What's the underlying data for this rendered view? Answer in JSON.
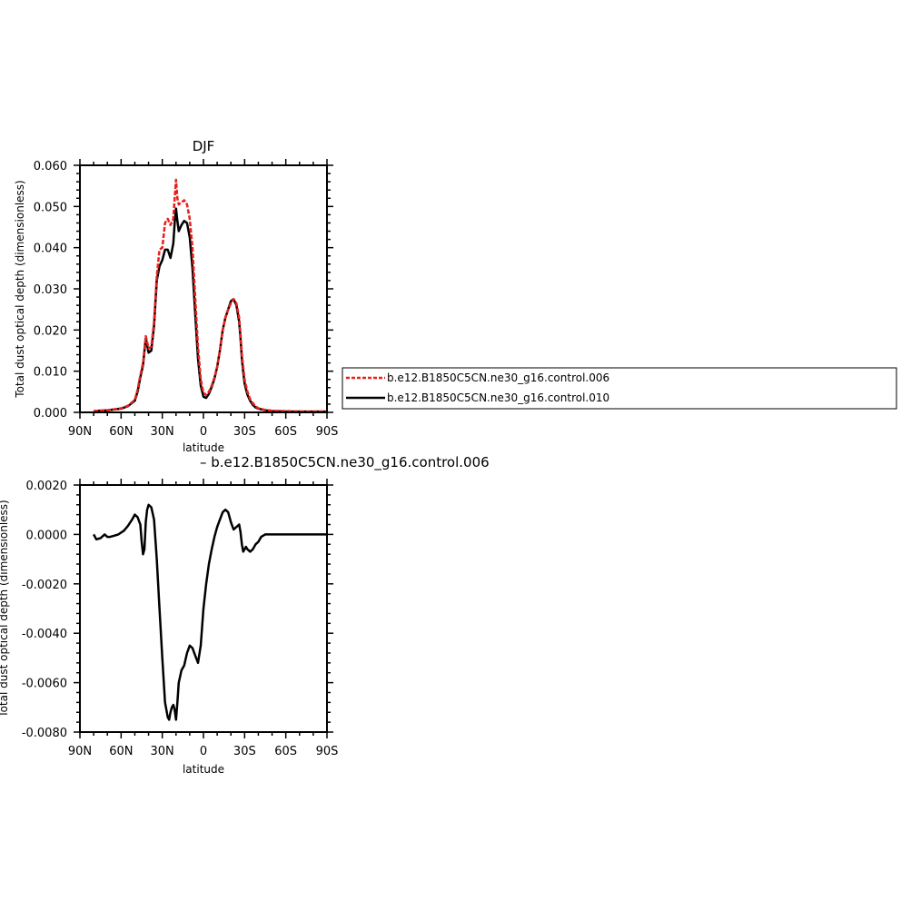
{
  "chart_data": [
    {
      "type": "line",
      "title": "DJF",
      "xlabel": "latitude",
      "ylabel": "Total dust optical depth (dimensionless)",
      "x_tick_values": [
        90,
        60,
        30,
        0,
        -30,
        -60,
        -90
      ],
      "x_tick_labels": [
        "90N",
        "60N",
        "30N",
        "0",
        "30S",
        "60S",
        "90S"
      ],
      "xlim": [
        90,
        -90
      ],
      "ylim": [
        0,
        0.06
      ],
      "y_tick_values": [
        0,
        0.01,
        0.02,
        0.03,
        0.04,
        0.05,
        0.06
      ],
      "y_tick_labels": [
        "0.000",
        "0.010",
        "0.020",
        "0.030",
        "0.040",
        "0.050",
        "0.060"
      ],
      "grid": false,
      "legend_position": "right",
      "series": [
        {
          "name": "b.e12.B1850C5CN.ne30_g16.control.006",
          "color": "#e8201c",
          "dash": true,
          "x": [
            80,
            70,
            60,
            55,
            50,
            48,
            46,
            44,
            42,
            40,
            38,
            36,
            34,
            32,
            30,
            28,
            26,
            24,
            22,
            21,
            20,
            19,
            18,
            16,
            14,
            12,
            10,
            8,
            6,
            4,
            2,
            0,
            -2,
            -4,
            -6,
            -8,
            -10,
            -12,
            -14,
            -16,
            -18,
            -20,
            -22,
            -24,
            -26,
            -27,
            -28,
            -29,
            -30,
            -32,
            -34,
            -36,
            -38,
            -40,
            -45,
            -50,
            -60,
            -70,
            -80,
            -90
          ],
          "y": [
            0.0003,
            0.0005,
            0.001,
            0.0016,
            0.003,
            0.0055,
            0.009,
            0.012,
            0.0185,
            0.0155,
            0.016,
            0.022,
            0.033,
            0.0395,
            0.04,
            0.046,
            0.047,
            0.0455,
            0.047,
            0.052,
            0.0565,
            0.052,
            0.0505,
            0.051,
            0.0515,
            0.0505,
            0.047,
            0.04,
            0.028,
            0.016,
            0.008,
            0.0048,
            0.0042,
            0.005,
            0.0065,
            0.0085,
            0.011,
            0.015,
            0.02,
            0.023,
            0.025,
            0.0265,
            0.0275,
            0.0265,
            0.023,
            0.019,
            0.014,
            0.011,
            0.008,
            0.005,
            0.0032,
            0.0022,
            0.0015,
            0.001,
            0.0006,
            0.0004,
            0.0003,
            0.0002,
            0.0002,
            0.0002
          ]
        },
        {
          "name": "b.e12.B1850C5CN.ne30_g16.control.010",
          "color": "#000000",
          "dash": false,
          "x": [
            80,
            70,
            60,
            55,
            50,
            48,
            46,
            44,
            42,
            40,
            38,
            36,
            34,
            32,
            30,
            28,
            26,
            24,
            22,
            21,
            20,
            19,
            18,
            16,
            14,
            12,
            10,
            8,
            6,
            4,
            2,
            0,
            -2,
            -4,
            -6,
            -8,
            -10,
            -12,
            -14,
            -16,
            -18,
            -20,
            -22,
            -24,
            -26,
            -27,
            -28,
            -29,
            -30,
            -32,
            -34,
            -36,
            -38,
            -40,
            -45,
            -50,
            -60,
            -70,
            -80,
            -90
          ],
          "y": [
            0.0003,
            0.0005,
            0.0009,
            0.0015,
            0.0028,
            0.005,
            0.0085,
            0.0115,
            0.018,
            0.0145,
            0.015,
            0.021,
            0.032,
            0.0355,
            0.037,
            0.0395,
            0.0395,
            0.0375,
            0.041,
            0.046,
            0.0495,
            0.0465,
            0.044,
            0.0455,
            0.0465,
            0.046,
            0.0425,
            0.035,
            0.024,
            0.013,
            0.0065,
            0.0038,
            0.0035,
            0.0045,
            0.0062,
            0.0082,
            0.011,
            0.015,
            0.02,
            0.023,
            0.025,
            0.027,
            0.0275,
            0.026,
            0.022,
            0.018,
            0.013,
            0.0098,
            0.007,
            0.0043,
            0.0028,
            0.0018,
            0.0012,
            0.0009,
            0.0005,
            0.0003,
            0.0002,
            0.0002,
            0.0002,
            0.0002
          ]
        }
      ]
    },
    {
      "type": "line",
      "title": "– b.e12.B1850C5CN.ne30_g16.control.006",
      "xlabel": "latitude",
      "ylabel": "Total dust optical depth (dimensionless)",
      "x_tick_values": [
        90,
        60,
        30,
        0,
        -30,
        -60,
        -90
      ],
      "x_tick_labels": [
        "90N",
        "60N",
        "30N",
        "0",
        "30S",
        "60S",
        "90S"
      ],
      "xlim": [
        90,
        -90
      ],
      "ylim": [
        -0.008,
        0.002
      ],
      "y_tick_values": [
        -0.008,
        -0.006,
        -0.004,
        -0.002,
        0,
        0.002
      ],
      "y_tick_labels": [
        "-0.0080",
        "-0.0060",
        "-0.0040",
        "-0.0020",
        "0.0000",
        "0.0020"
      ],
      "grid": false,
      "series": [
        {
          "color": "#000000",
          "x": [
            80,
            78,
            75,
            72,
            70,
            68,
            65,
            62,
            58,
            55,
            52,
            50,
            48,
            46,
            45,
            44,
            43,
            42,
            41,
            40,
            38,
            36,
            34,
            32,
            30,
            28,
            26,
            25,
            24,
            23,
            22,
            21,
            20,
            19,
            18,
            16,
            14,
            12,
            10,
            8,
            6,
            4,
            2,
            0,
            -2,
            -4,
            -6,
            -8,
            -10,
            -12,
            -14,
            -16,
            -18,
            -20,
            -22,
            -24,
            -26,
            -27,
            -28,
            -29,
            -30,
            -31,
            -32,
            -34,
            -36,
            -38,
            -40,
            -42,
            -45,
            -48,
            -50,
            -60,
            -70,
            -80,
            -90
          ],
          "y": [
            0.0,
            -0.0002,
            -0.00015,
            0.0,
            -0.0001,
            -0.0001,
            -5e-05,
            0.0,
            0.00015,
            0.00035,
            0.0006,
            0.0008,
            0.0007,
            0.0004,
            -0.0003,
            -0.0008,
            -0.0006,
            0.0005,
            0.001,
            0.0012,
            0.0011,
            0.0006,
            -0.001,
            -0.003,
            -0.005,
            -0.0068,
            -0.0074,
            -0.0075,
            -0.0072,
            -0.007,
            -0.0069,
            -0.0071,
            -0.0075,
            -0.0068,
            -0.006,
            -0.0055,
            -0.0053,
            -0.0048,
            -0.0045,
            -0.0046,
            -0.0049,
            -0.0052,
            -0.0045,
            -0.003,
            -0.002,
            -0.0012,
            -0.0006,
            -0.0001,
            0.0003,
            0.0006,
            0.0009,
            0.001,
            0.0009,
            0.0005,
            0.0002,
            0.0003,
            0.0004,
            0.0001,
            -0.0004,
            -0.0007,
            -0.0006,
            -0.0005,
            -0.0006,
            -0.0007,
            -0.0006,
            -0.0004,
            -0.0003,
            -0.0001,
            0.0,
            0.0,
            0.0,
            0.0,
            0.0,
            0.0,
            0.0
          ]
        }
      ]
    }
  ]
}
